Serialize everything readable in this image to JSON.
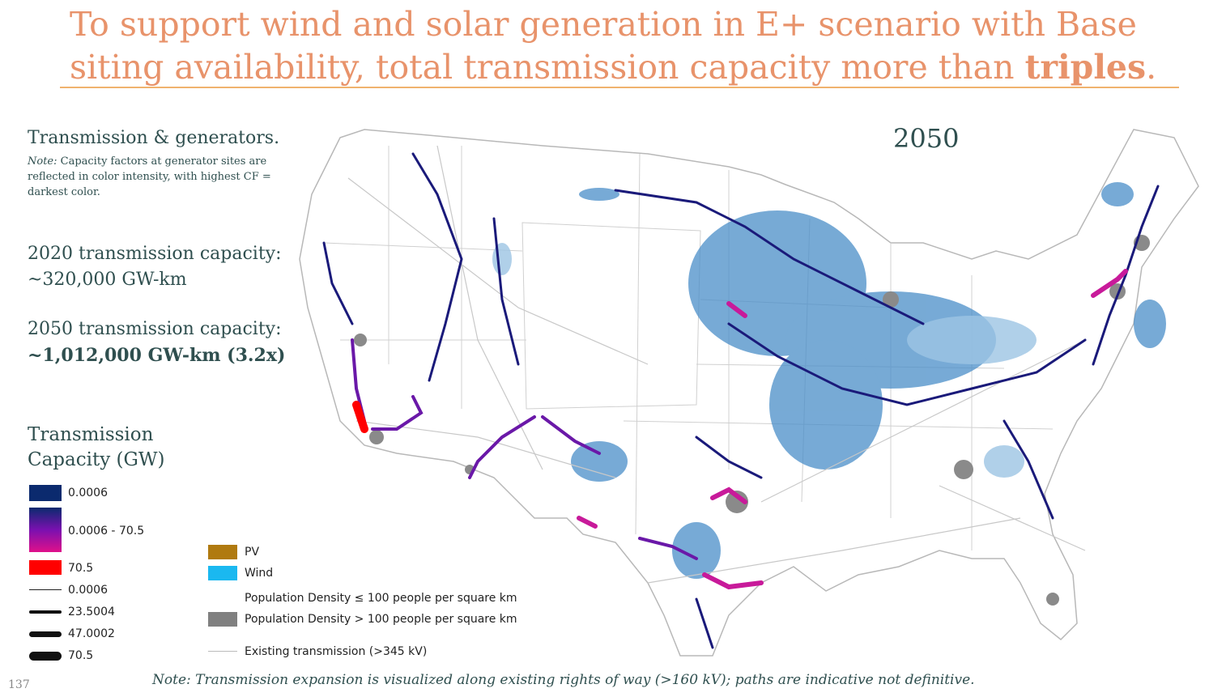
{
  "title": {
    "part1": "To support wind and solar generation in E+ scenario with Base siting availability, total transmission capacity more than ",
    "emph": "triples",
    "end": "."
  },
  "side": {
    "heading": "Transmission & generators.",
    "note_label": "Note:",
    "note_text": " Capacity factors at generator sites are reflected in color intensity, with highest CF = darkest color."
  },
  "capacity": {
    "c2020_label": "2020 transmission capacity:",
    "c2020_value": "~320,000 GW-km",
    "c2050_label": "2050 transmission capacity:",
    "c2050_value": "~1,012,000 GW-km (3.2x)"
  },
  "year": "2050",
  "legend": {
    "title_line1": "Transmission",
    "title_line2": "Capacity (GW)",
    "color_min": "0.0006",
    "color_range": "0.0006 - 70.5",
    "color_max": "70.5",
    "width_1": "0.0006",
    "width_2": "23.5004",
    "width_3": "47.0002",
    "width_4": "70.5",
    "pv": "PV",
    "wind": "Wind",
    "pop_low": "Population Density ≤ 100 people per square km",
    "pop_high": "Population Density > 100 people per square km",
    "existing": "Existing transmission (>345 kV)"
  },
  "colors": {
    "title": "#e8936b",
    "rule": "#f0b36e",
    "text": "#2f4f4f",
    "tx_low": "#0b2a6e",
    "tx_mid": "#7a10b0",
    "tx_high": "#e0108a",
    "tx_max": "#ff0000",
    "pv": "#b07a10",
    "wind": "#1ab8f0",
    "population": "#808080",
    "existing": "#c8c8c8"
  },
  "footnote": "Note: Transmission expansion is visualized along existing rights of way (>160 kV); paths are indicative not definitive.",
  "page_number": "137"
}
